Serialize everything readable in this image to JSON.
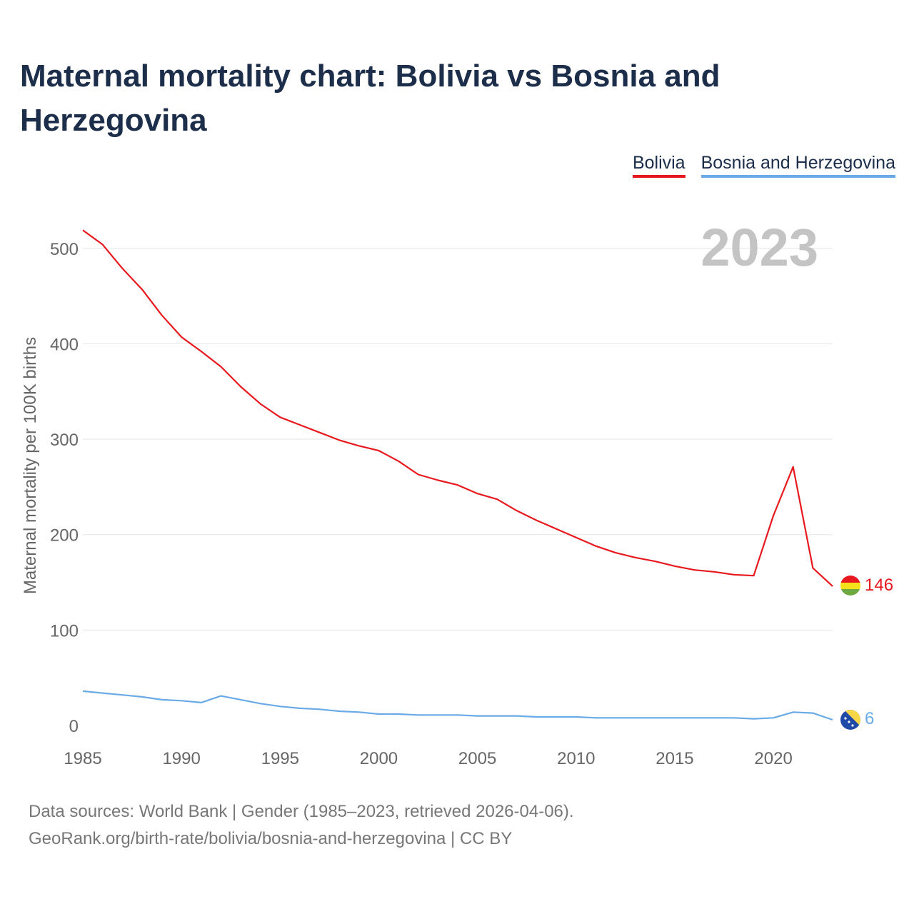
{
  "title": "Maternal mortality chart: Bolivia vs Bosnia and Herzegovina",
  "legend": [
    {
      "label": "Bolivia",
      "color": "#e8191e"
    },
    {
      "label": "Bosnia and Herzegovina",
      "color": "#6aaae6"
    }
  ],
  "year_watermark": "2023",
  "end_labels": {
    "bolivia": "146",
    "bosnia": "6"
  },
  "source": {
    "line1": "Data sources: World Bank | Gender (1985–2023, retrieved 2026-04-06).",
    "line2": "GeoRank.org/birth-rate/bolivia/bosnia-and-herzegovina | CC BY"
  },
  "chart_data": {
    "type": "line",
    "title": "Maternal mortality chart: Bolivia vs Bosnia and Herzegovina",
    "xlabel": "",
    "ylabel": "Maternal mortality per 100K births",
    "xlim": [
      1985,
      2023
    ],
    "ylim": [
      0,
      520
    ],
    "x_ticks": [
      1985,
      1990,
      1995,
      2000,
      2005,
      2010,
      2015,
      2020
    ],
    "y_ticks": [
      0,
      100,
      200,
      300,
      400,
      500
    ],
    "grid": true,
    "x": [
      1985,
      1986,
      1987,
      1988,
      1989,
      1990,
      1991,
      1992,
      1993,
      1994,
      1995,
      1996,
      1997,
      1998,
      1999,
      2000,
      2001,
      2002,
      2003,
      2004,
      2005,
      2006,
      2007,
      2008,
      2009,
      2010,
      2011,
      2012,
      2013,
      2014,
      2015,
      2016,
      2017,
      2018,
      2019,
      2020,
      2021,
      2022,
      2023
    ],
    "series": [
      {
        "name": "Bolivia",
        "color": "#e8191e",
        "values": [
          519,
          504,
          479,
          457,
          430,
          407,
          392,
          376,
          355,
          337,
          323,
          315,
          307,
          299,
          293,
          288,
          277,
          263,
          257,
          252,
          243,
          237,
          225,
          215,
          206,
          197,
          188,
          181,
          176,
          172,
          167,
          163,
          161,
          158,
          157,
          220,
          271,
          165,
          146
        ]
      },
      {
        "name": "Bosnia and Herzegovina",
        "color": "#6aaae6",
        "values": [
          36,
          34,
          32,
          30,
          27,
          26,
          24,
          31,
          27,
          23,
          20,
          18,
          17,
          15,
          14,
          12,
          12,
          11,
          11,
          11,
          10,
          10,
          10,
          9,
          9,
          9,
          8,
          8,
          8,
          8,
          8,
          8,
          8,
          8,
          7,
          8,
          14,
          13,
          6
        ]
      }
    ]
  }
}
